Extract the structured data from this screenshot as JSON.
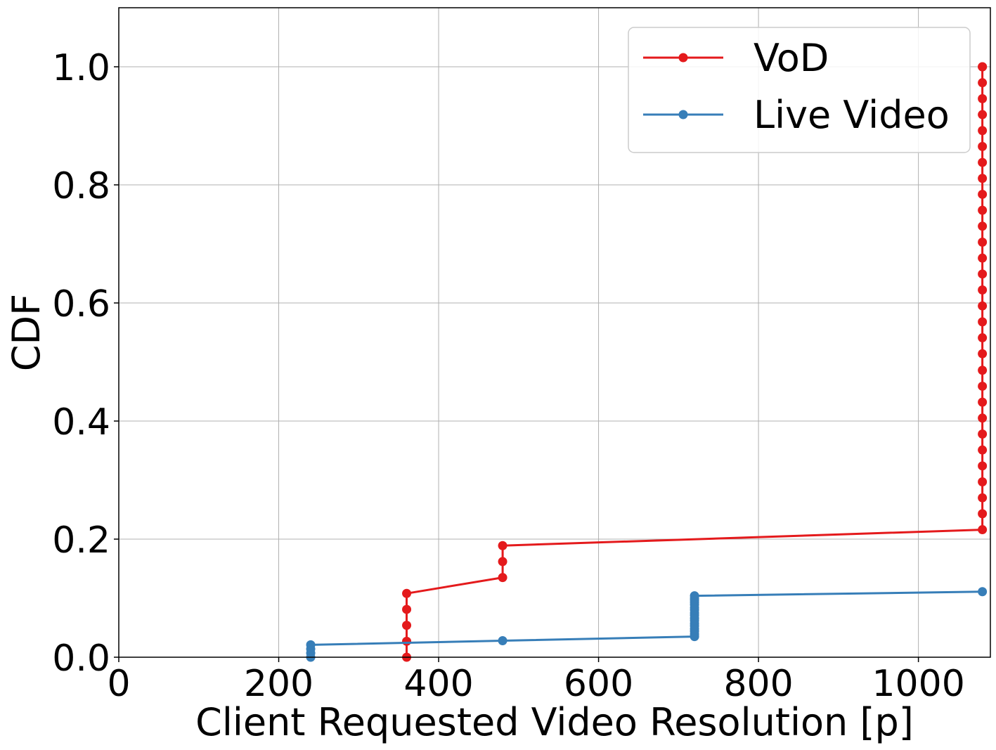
{
  "chart_data": {
    "type": "line",
    "title": "",
    "xlabel": "Client Requested Video Resolution [p]",
    "ylabel": "CDF",
    "xlim": [
      0,
      1090
    ],
    "ylim": [
      0,
      1.1
    ],
    "xticks": [
      0,
      200,
      400,
      600,
      800,
      1000
    ],
    "xtick_labels": [
      "0",
      "200",
      "400",
      "600",
      "800",
      "1000"
    ],
    "yticks": [
      0.0,
      0.2,
      0.4,
      0.6,
      0.8,
      1.0
    ],
    "ytick_labels": [
      "0.0",
      "0.2",
      "0.4",
      "0.6",
      "0.8",
      "1.0"
    ],
    "grid": true,
    "legend_position": "top-right",
    "series": [
      {
        "name": "VoD",
        "color": "#e41a1c",
        "x": [
          360,
          360,
          360,
          360,
          360,
          480,
          480,
          480,
          1080,
          1080,
          1080,
          1080,
          1080,
          1080,
          1080,
          1080,
          1080,
          1080,
          1080,
          1080,
          1080,
          1080,
          1080,
          1080,
          1080,
          1080,
          1080,
          1080,
          1080,
          1080,
          1080,
          1080,
          1080,
          1080,
          1080,
          1080,
          1080,
          1080,
          1080
        ],
        "y": [
          0.0,
          0.027,
          0.054,
          0.081,
          0.108,
          0.135,
          0.162,
          0.189,
          0.216,
          0.243,
          0.27,
          0.297,
          0.324,
          0.351,
          0.378,
          0.405,
          0.432,
          0.459,
          0.486,
          0.514,
          0.541,
          0.568,
          0.595,
          0.622,
          0.649,
          0.676,
          0.703,
          0.73,
          0.757,
          0.784,
          0.811,
          0.838,
          0.865,
          0.892,
          0.919,
          0.946,
          0.973,
          1.0,
          1.0
        ]
      },
      {
        "name": "Live Video",
        "color": "#377eb8",
        "x": [
          240,
          240,
          240,
          240,
          480,
          720,
          720,
          720,
          720,
          720,
          720,
          720,
          720,
          720,
          720,
          720,
          720,
          720,
          720,
          720,
          720,
          720,
          1080
        ],
        "y": [
          0.0,
          0.007,
          0.014,
          0.021,
          0.028,
          0.035,
          0.039,
          0.044,
          0.048,
          0.053,
          0.057,
          0.062,
          0.066,
          0.071,
          0.075,
          0.08,
          0.084,
          0.089,
          0.093,
          0.097,
          0.1,
          0.104,
          0.111
        ]
      }
    ]
  }
}
